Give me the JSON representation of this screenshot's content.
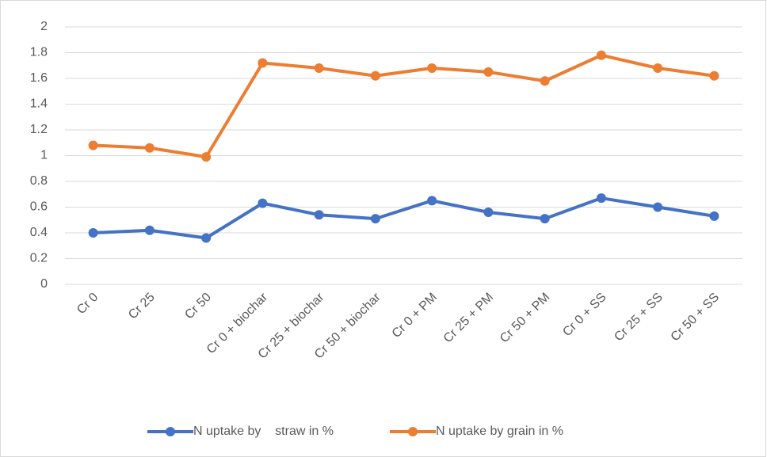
{
  "chart_data": {
    "type": "line",
    "categories": [
      "Cr 0",
      "Cr 25",
      "Cr 50",
      "Cr 0 + biochar",
      "Cr 25 + biochar",
      "Cr 50 + biochar",
      "Cr 0 + PM",
      "Cr 25 + PM",
      "Cr 50 + PM",
      "Cr 0 + SS",
      "Cr 25 + SS",
      "Cr 50 + SS"
    ],
    "series": [
      {
        "name": "N uptake by    straw in %",
        "color": "#4472c4",
        "values": [
          0.4,
          0.42,
          0.36,
          0.63,
          0.54,
          0.51,
          0.65,
          0.56,
          0.51,
          0.67,
          0.6,
          0.53
        ]
      },
      {
        "name": "N uptake by grain in %",
        "color": "#ed7d31",
        "values": [
          1.08,
          1.06,
          0.99,
          1.72,
          1.68,
          1.62,
          1.68,
          1.65,
          1.58,
          1.78,
          1.68,
          1.62
        ]
      }
    ],
    "ylim": [
      0,
      2
    ],
    "yticks": [
      0,
      0.2,
      0.4,
      0.6,
      0.8,
      1,
      1.2,
      1.4,
      1.6,
      1.8,
      2
    ],
    "grid": true,
    "legend": "bottom"
  }
}
